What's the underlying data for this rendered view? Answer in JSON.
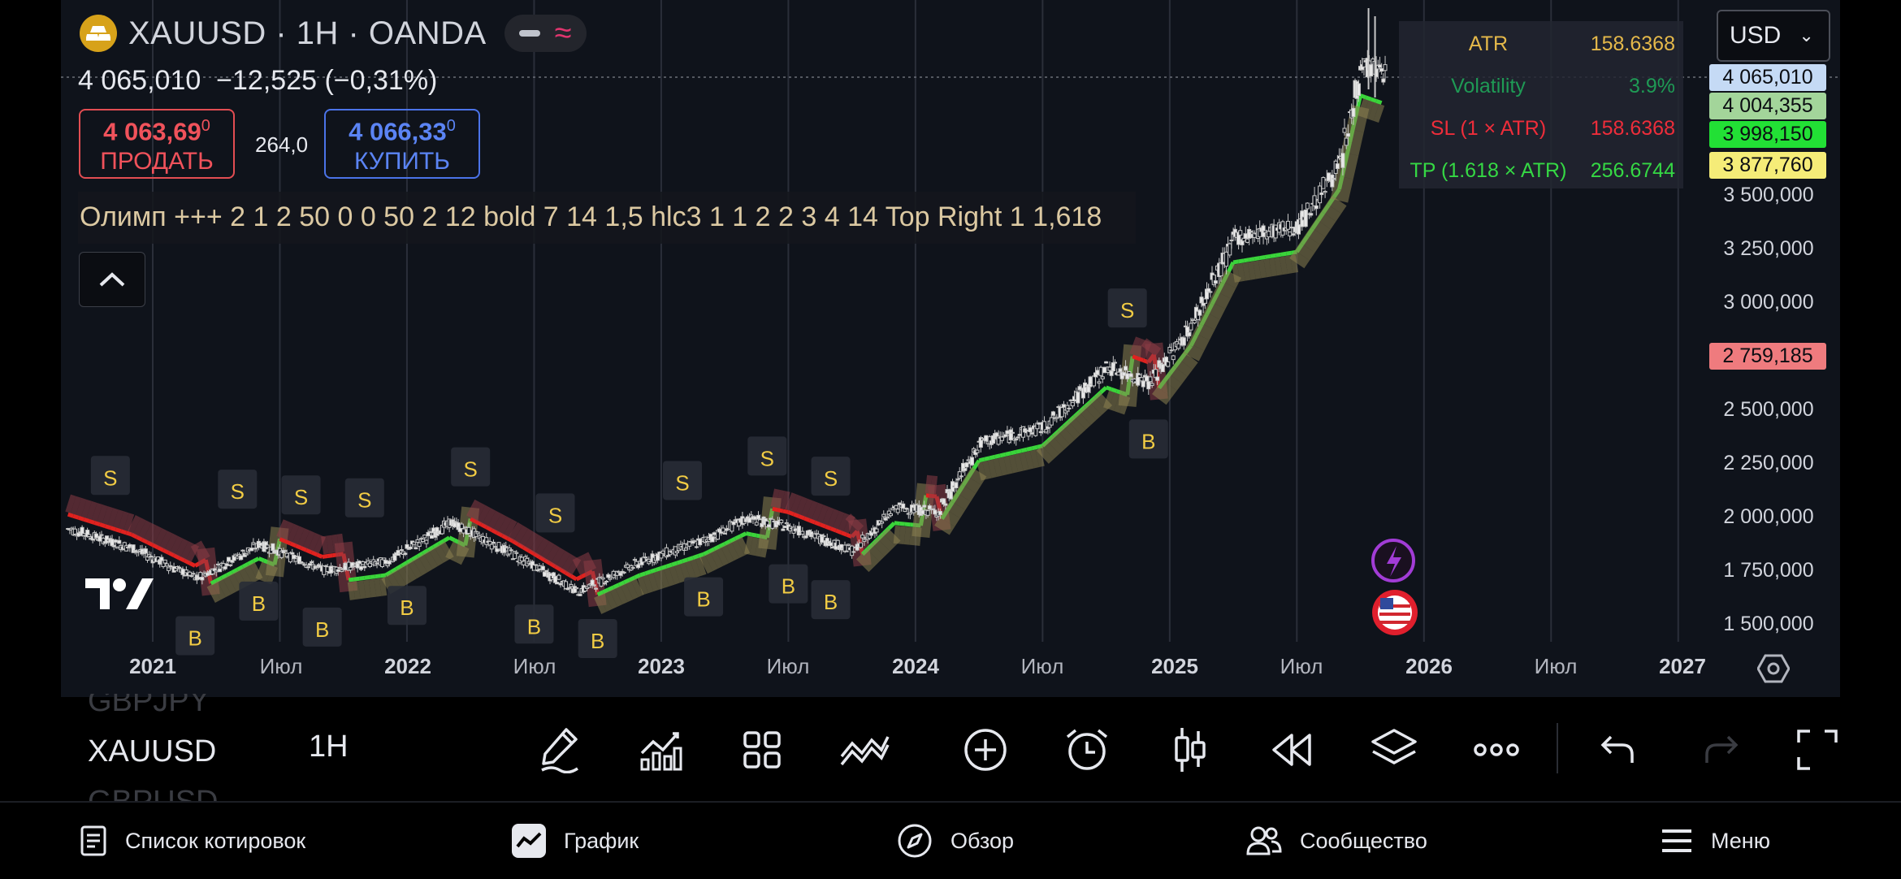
{
  "header": {
    "title": "XAUUSD · 1H · OANDA",
    "logo_icon": "gold-bars-icon",
    "last_price": "4 065,010",
    "change": "−12,525 (−0,31%)"
  },
  "trade": {
    "sell_price_main": "4 063,69",
    "sell_price_sup": "0",
    "sell_label": "ПРОДАТЬ",
    "spread": "264,0",
    "buy_price_main": "4 066,33",
    "buy_price_sup": "0",
    "buy_label": "КУПИТЬ"
  },
  "indicator_params": "Олимп +++ 2 1 2 50 0 0 50 2 12 bold 7 14 1,5 hlc3 1 1 2 2 3 4 14 Top Right 1 1,618",
  "stats_table": [
    {
      "key": "ATR",
      "value": "158.6368",
      "key_color": "#e5b94a",
      "value_color": "#e5b94a"
    },
    {
      "key": "Volatility",
      "value": "3.9%",
      "key_color": "#1f9a55",
      "value_color": "#1f9a55"
    },
    {
      "key": "SL (1 × ATR)",
      "value": "158.6368",
      "key_color": "#ee2d3a",
      "value_color": "#ee2d3a"
    },
    {
      "key": "TP (1.618 × ATR)",
      "value": "256.6744",
      "key_color": "#35d844",
      "value_color": "#35d844"
    }
  ],
  "currency": {
    "selected": "USD"
  },
  "y_axis": {
    "labels": [
      "3 500,000",
      "3 250,000",
      "3 000,000",
      "2 500,000",
      "2 250,000",
      "2 000,000",
      "1 750,000",
      "1 500,000"
    ],
    "tags": [
      {
        "text": "4 065,010",
        "color": "#c5daf5"
      },
      {
        "text": "4 004,355",
        "color": "#a3d59a"
      },
      {
        "text": "3 998,150",
        "color": "#22e035"
      },
      {
        "text": "3 877,760",
        "color": "#f5ec78"
      },
      {
        "text": "2 759,185",
        "color": "#ef7b7e"
      }
    ]
  },
  "x_axis": {
    "labels": [
      {
        "text": "2021",
        "bold": true
      },
      {
        "text": "Июл",
        "bold": false
      },
      {
        "text": "2022",
        "bold": true
      },
      {
        "text": "Июл",
        "bold": false
      },
      {
        "text": "2023",
        "bold": true
      },
      {
        "text": "Июл",
        "bold": false
      },
      {
        "text": "2024",
        "bold": true
      },
      {
        "text": "Июл",
        "bold": false
      },
      {
        "text": "2025",
        "bold": true
      },
      {
        "text": "Июл",
        "bold": false
      },
      {
        "text": "2026",
        "bold": true
      },
      {
        "text": "Июл",
        "bold": false
      },
      {
        "text": "2027",
        "bold": true
      }
    ]
  },
  "chart_data": {
    "type": "candlestick",
    "symbol": "XAUUSD",
    "interval": "1H",
    "ylim": [
      1450,
      4150
    ],
    "x_range": [
      "2020-09",
      "2027-04"
    ],
    "price_path": [
      [
        "2020-09",
        1950
      ],
      [
        "2020-12",
        1860
      ],
      [
        "2021-03",
        1720
      ],
      [
        "2021-06",
        1880
      ],
      [
        "2021-09",
        1760
      ],
      [
        "2021-12",
        1800
      ],
      [
        "2022-03",
        1980
      ],
      [
        "2022-06",
        1830
      ],
      [
        "2022-09",
        1660
      ],
      [
        "2022-12",
        1800
      ],
      [
        "2023-03",
        1900
      ],
      [
        "2023-05",
        2000
      ],
      [
        "2023-07",
        1960
      ],
      [
        "2023-10",
        1850
      ],
      [
        "2023-12",
        2050
      ],
      [
        "2024-02",
        2030
      ],
      [
        "2024-04",
        2350
      ],
      [
        "2024-07",
        2420
      ],
      [
        "2024-10",
        2700
      ],
      [
        "2024-12",
        2630
      ],
      [
        "2025-02",
        2900
      ],
      [
        "2025-04",
        3300
      ],
      [
        "2025-07",
        3350
      ],
      [
        "2025-09",
        3650
      ],
      [
        "2025-10",
        4100
      ],
      [
        "2025-11",
        4065
      ]
    ],
    "signals": [
      {
        "type": "S",
        "date": "2020-11"
      },
      {
        "type": "B",
        "date": "2021-03"
      },
      {
        "type": "S",
        "date": "2021-05"
      },
      {
        "type": "B",
        "date": "2021-06"
      },
      {
        "type": "S",
        "date": "2021-08"
      },
      {
        "type": "B",
        "date": "2021-09"
      },
      {
        "type": "S",
        "date": "2021-11"
      },
      {
        "type": "B",
        "date": "2022-01"
      },
      {
        "type": "S",
        "date": "2022-04"
      },
      {
        "type": "B",
        "date": "2022-07"
      },
      {
        "type": "S",
        "date": "2022-08"
      },
      {
        "type": "B",
        "date": "2022-10"
      },
      {
        "type": "S",
        "date": "2023-02"
      },
      {
        "type": "B",
        "date": "2023-03"
      },
      {
        "type": "S",
        "date": "2023-06"
      },
      {
        "type": "B",
        "date": "2023-07"
      },
      {
        "type": "S",
        "date": "2023-09"
      },
      {
        "type": "B",
        "date": "2023-09"
      },
      {
        "type": "S",
        "date": "2024-11"
      },
      {
        "type": "B",
        "date": "2024-12"
      }
    ],
    "grid": true
  },
  "toolbar": {
    "symbols": {
      "prev": "GBPJPY",
      "current": "XAUUSD",
      "next": "GBPUSD"
    },
    "timeframe": "1H",
    "tools": [
      "pencil-icon",
      "indicators-icon",
      "layout-grid-icon",
      "drawing-tools-icon",
      "add-icon",
      "alert-clock-icon",
      "candle-type-icon",
      "replay-icon",
      "layers-icon",
      "more-icon",
      "undo-icon",
      "redo-icon",
      "fullscreen-icon"
    ]
  },
  "nav": {
    "watchlist": "Список котировок",
    "chart": "График",
    "overview": "Обзор",
    "community": "Сообщество",
    "menu": "Меню"
  }
}
